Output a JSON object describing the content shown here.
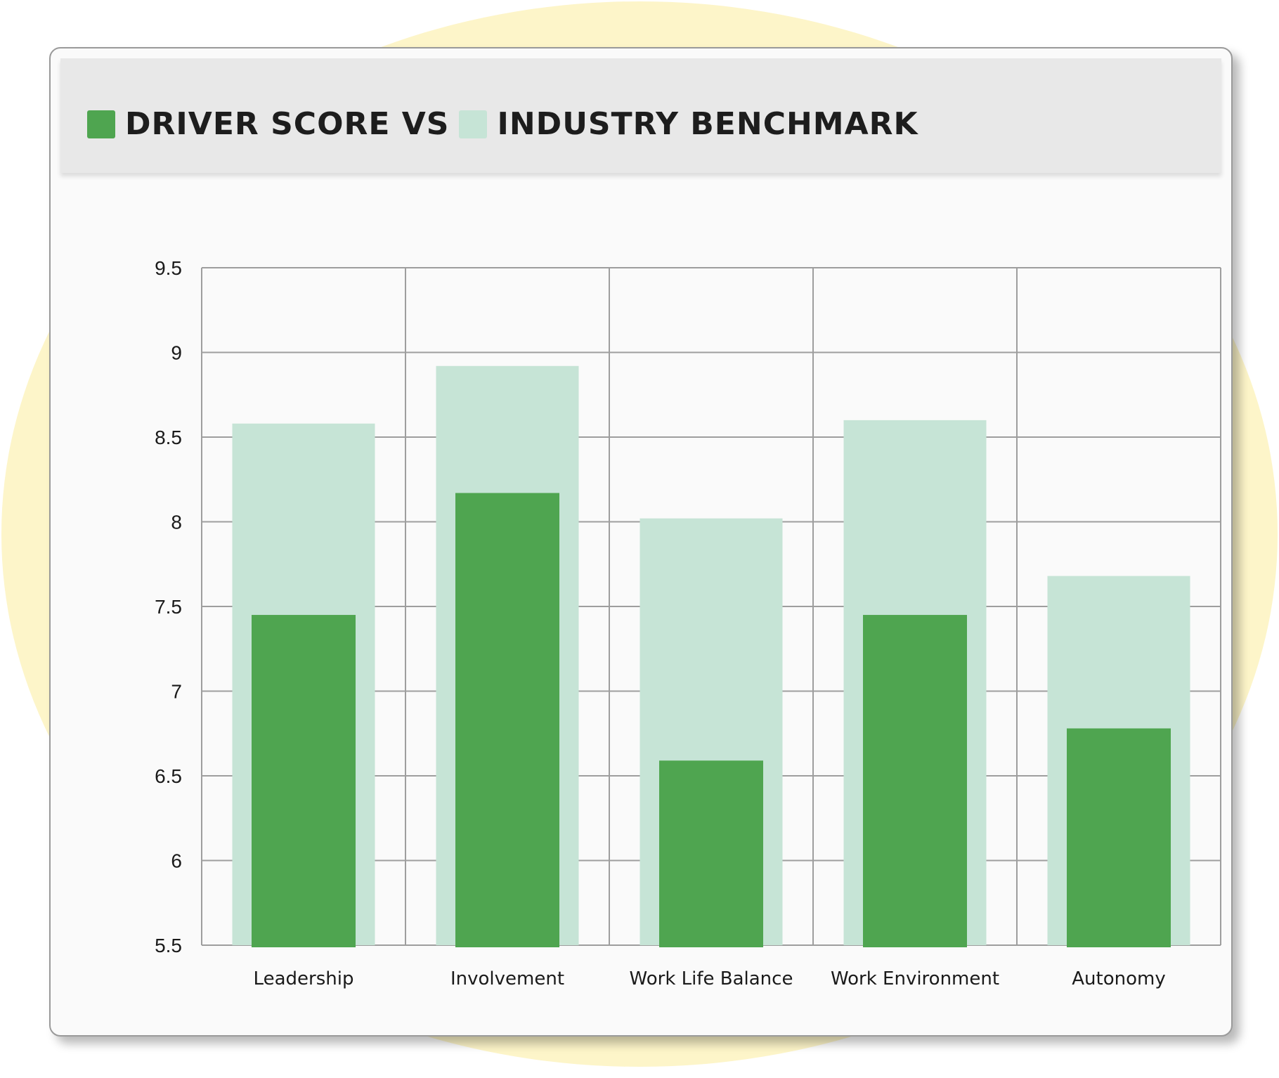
{
  "legend": {
    "driver_label": "DRIVER SCORE VS",
    "benchmark_label": "INDUSTRY BENCHMARK"
  },
  "colors": {
    "driver": "#4fa550",
    "benchmark": "#c6e4d6",
    "grid": "#9e9e9e",
    "card_background": "#fafafa",
    "header_background": "#e8e8e8",
    "backdrop_blob": "#fdf5c9"
  },
  "chart_data": {
    "type": "bar",
    "title": "",
    "xlabel": "",
    "ylabel": "",
    "ylim": [
      5.5,
      9.5
    ],
    "yticks": [
      5.5,
      6,
      6.5,
      7,
      7.5,
      8,
      8.5,
      9,
      9.5
    ],
    "grid": true,
    "categories": [
      "Leadership",
      "Involvement",
      "Work Life Balance",
      "Work Environment",
      "Autonomy"
    ],
    "series": [
      {
        "name": "INDUSTRY BENCHMARK",
        "values": [
          8.58,
          8.92,
          8.02,
          8.6,
          7.68
        ]
      },
      {
        "name": "DRIVER SCORE",
        "values": [
          7.45,
          8.17,
          6.59,
          7.45,
          6.78
        ]
      }
    ]
  }
}
